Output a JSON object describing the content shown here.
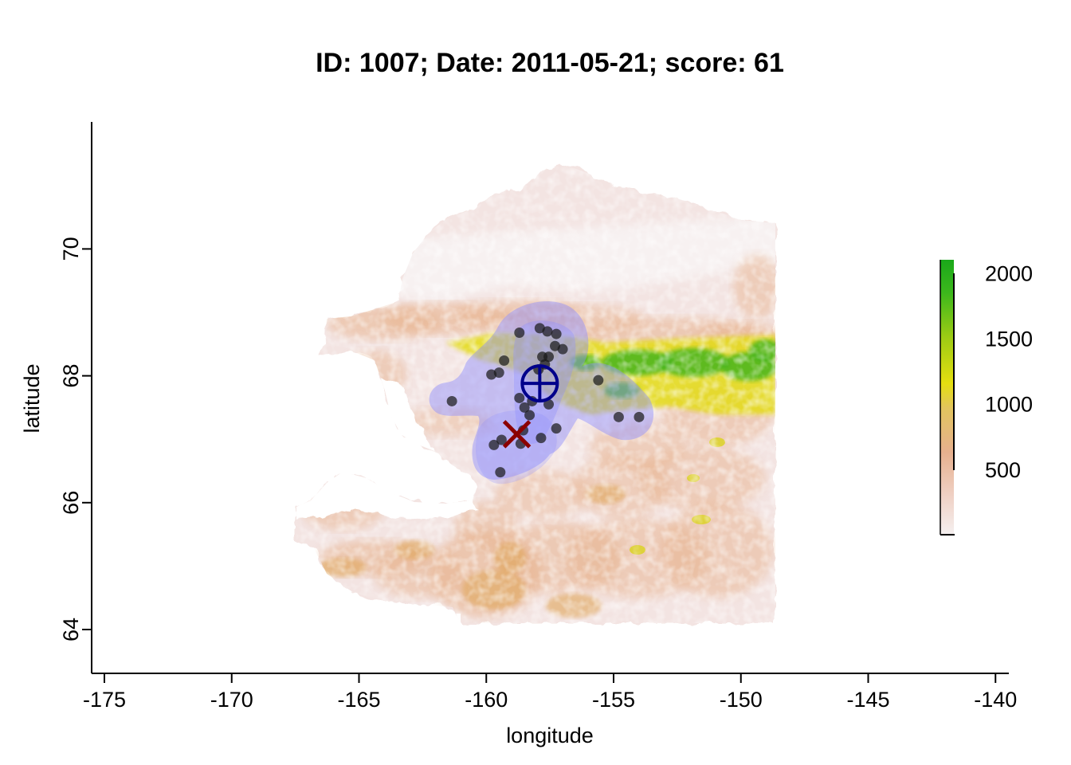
{
  "title": "ID: 1007;  Date: 2011-05-21;  score: 61",
  "chart_data": {
    "type": "scatter",
    "xlabel": "longitude",
    "ylabel": "latitude",
    "xlim": [
      -175.4,
      -139.6
    ],
    "ylim": [
      63.35,
      71.98
    ],
    "x_ticks": [
      -175,
      -170,
      -165,
      -160,
      -155,
      -150,
      -145,
      -140
    ],
    "x_tick_labels": [
      "-175",
      "-170",
      "-165",
      "-160",
      "-155",
      "-150",
      "-145",
      "-140"
    ],
    "y_ticks": [
      64,
      66,
      68,
      70
    ],
    "y_tick_labels": [
      "64",
      "66",
      "68",
      "70"
    ],
    "grid": false,
    "background_layer": "elevation raster (white-pink-tan-yellow-green ramp)",
    "points": [
      {
        "x": -158.7,
        "y": 68.68
      },
      {
        "x": -157.9,
        "y": 68.75
      },
      {
        "x": -157.6,
        "y": 68.7
      },
      {
        "x": -157.25,
        "y": 68.66
      },
      {
        "x": -157.3,
        "y": 68.47
      },
      {
        "x": -157.0,
        "y": 68.42
      },
      {
        "x": -157.55,
        "y": 68.3
      },
      {
        "x": -157.8,
        "y": 68.3
      },
      {
        "x": -157.7,
        "y": 68.18
      },
      {
        "x": -157.95,
        "y": 68.1
      },
      {
        "x": -159.3,
        "y": 68.24
      },
      {
        "x": -159.5,
        "y": 68.05
      },
      {
        "x": -159.8,
        "y": 68.02
      },
      {
        "x": -155.6,
        "y": 67.93
      },
      {
        "x": -161.35,
        "y": 67.6
      },
      {
        "x": -158.7,
        "y": 67.65
      },
      {
        "x": -158.2,
        "y": 67.6
      },
      {
        "x": -157.55,
        "y": 67.55
      },
      {
        "x": -158.5,
        "y": 67.5
      },
      {
        "x": -158.3,
        "y": 67.38
      },
      {
        "x": -154.8,
        "y": 67.35
      },
      {
        "x": -154.0,
        "y": 67.35
      },
      {
        "x": -157.25,
        "y": 67.17
      },
      {
        "x": -158.55,
        "y": 67.14
      },
      {
        "x": -157.85,
        "y": 67.02
      },
      {
        "x": -159.4,
        "y": 66.99
      },
      {
        "x": -158.65,
        "y": 66.93
      },
      {
        "x": -159.7,
        "y": 66.91
      },
      {
        "x": -159.45,
        "y": 66.48
      }
    ],
    "center_marker": {
      "x": -157.9,
      "y": 67.88,
      "symbol": "circle-plus",
      "color": "#00008b"
    },
    "x_marker": {
      "x": -158.8,
      "y": 67.08,
      "symbol": "x",
      "color": "#8b0000"
    },
    "point_color": "#1a1a1a",
    "range_polygon_color": "#8c8cff",
    "colorbar": {
      "ticks": [
        500,
        1000,
        1500,
        2000
      ],
      "tick_labels": [
        "500",
        "1000",
        "1500",
        "2000"
      ],
      "min": 0,
      "max": 2100
    }
  }
}
